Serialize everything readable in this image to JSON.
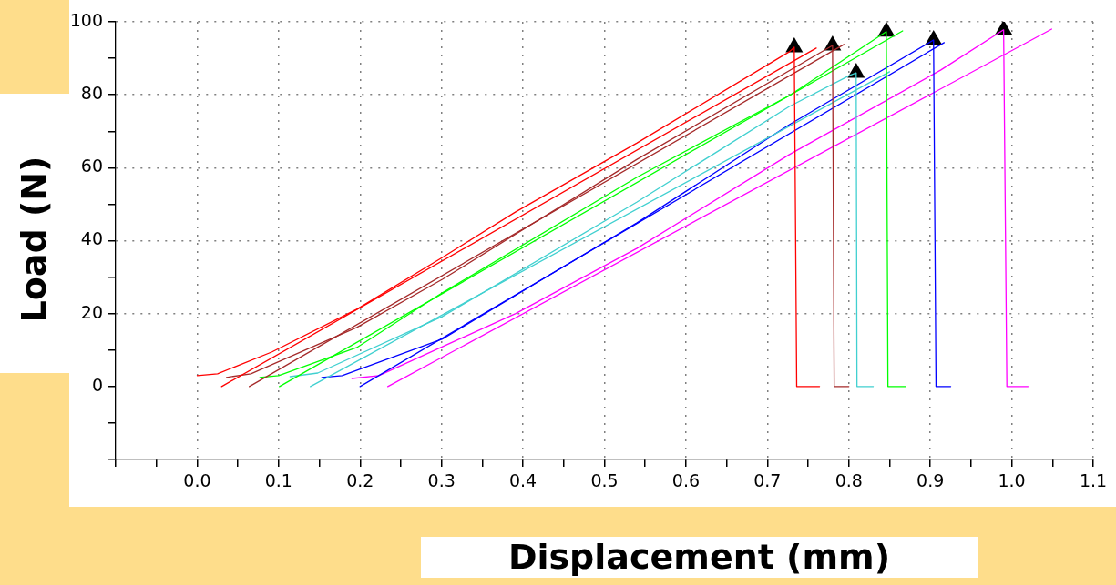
{
  "chart_data": {
    "type": "line",
    "xlabel": "Displacement (mm)",
    "ylabel": "Load (N)",
    "xlim": [
      -0.1,
      1.1
    ],
    "xticks": [
      {
        "value": -0.1,
        "label": null
      },
      {
        "value": -0.05,
        "label": null
      },
      {
        "value": 0,
        "label": "0.0"
      },
      {
        "value": 0.05,
        "label": null
      },
      {
        "value": 0.1,
        "label": "0.1"
      },
      {
        "value": 0.15,
        "label": null
      },
      {
        "value": 0.2,
        "label": "0.2"
      },
      {
        "value": 0.25,
        "label": null
      },
      {
        "value": 0.3,
        "label": "0.3"
      },
      {
        "value": 0.35,
        "label": null
      },
      {
        "value": 0.4,
        "label": "0.4"
      },
      {
        "value": 0.45,
        "label": null
      },
      {
        "value": 0.5,
        "label": "0.5"
      },
      {
        "value": 0.55,
        "label": null
      },
      {
        "value": 0.6,
        "label": "0.6"
      },
      {
        "value": 0.65,
        "label": null
      },
      {
        "value": 0.7,
        "label": "0.7"
      },
      {
        "value": 0.75,
        "label": null
      },
      {
        "value": 0.8,
        "label": "0.8"
      },
      {
        "value": 0.85,
        "label": null
      },
      {
        "value": 0.9,
        "label": "0.9"
      },
      {
        "value": 0.95,
        "label": null
      },
      {
        "value": 1,
        "label": "1.0"
      },
      {
        "value": 1.05,
        "label": null
      },
      {
        "value": 1.1,
        "label": "1.1"
      }
    ],
    "ylim": [
      -20,
      100
    ],
    "yticks": [
      {
        "value": -20,
        "label": null
      },
      {
        "value": -10,
        "label": null
      },
      0,
      {
        "value": 10,
        "label": null
      },
      20,
      {
        "value": 30,
        "label": null
      },
      40,
      {
        "value": 50,
        "label": null
      },
      60,
      {
        "value": 70,
        "label": null
      },
      80,
      {
        "value": 90,
        "label": null
      },
      100
    ],
    "grid": true,
    "legend": false,
    "series": [
      {
        "color": "#ff0000",
        "x": [
          0.0,
          0.025,
          0.092,
          0.196,
          0.301,
          0.391,
          0.54,
          0.727,
          0.733,
          0.736,
          0.764
        ],
        "values": [
          3,
          3.5,
          9.5,
          21.2,
          35.4,
          47.9,
          66.8,
          91.8,
          93,
          0,
          0
        ]
      },
      {
        "color": "#ff0000",
        "x": [
          0.03,
          0.76
        ],
        "values": [
          0,
          92.8
        ]
      },
      {
        "color": "#a52a2a",
        "x": [
          0.036,
          0.066,
          0.196,
          0.301,
          0.54,
          0.78,
          0.782,
          0.8
        ],
        "values": [
          2.5,
          3.5,
          16.2,
          29.4,
          62.3,
          93.5,
          0,
          0
        ]
      },
      {
        "color": "#a52a2a",
        "x": [
          0.064,
          0.794
        ],
        "values": [
          0,
          93.8
        ]
      },
      {
        "color": "#00ff00",
        "x": [
          0.077,
          0.1,
          0.196,
          0.301,
          0.54,
          0.727,
          0.846,
          0.848,
          0.87
        ],
        "values": [
          2.5,
          3,
          10.7,
          25.7,
          57.4,
          79.8,
          97.3,
          0,
          0
        ]
      },
      {
        "color": "#00ff00",
        "x": [
          0.101,
          0.866
        ],
        "values": [
          0,
          97.5
        ]
      },
      {
        "color": "#40d0d0",
        "x": [
          0.114,
          0.148,
          0.301,
          0.54,
          0.727,
          0.801,
          0.809,
          0.81,
          0.83
        ],
        "values": [
          2.7,
          3.7,
          19.2,
          50.6,
          76.8,
          85.3,
          86,
          0,
          0
        ]
      },
      {
        "color": "#40d0d0",
        "x": [
          0.139,
          0.85
        ],
        "values": [
          0,
          86.3
        ]
      },
      {
        "color": "#0000ff",
        "x": [
          0.153,
          0.178,
          0.301,
          0.54,
          0.727,
          0.904,
          0.907,
          0.925
        ],
        "values": [
          2.5,
          3,
          13,
          44.9,
          71.8,
          95,
          0,
          0
        ]
      },
      {
        "color": "#0000ff",
        "x": [
          0.2,
          0.917
        ],
        "values": [
          0,
          94.3
        ]
      },
      {
        "color": "#ff00ff",
        "x": [
          0.19,
          0.223,
          0.391,
          0.54,
          0.727,
          0.913,
          0.99,
          0.994,
          1.02
        ],
        "values": [
          2.2,
          3,
          20,
          37.9,
          63.6,
          86.8,
          97.8,
          0,
          0
        ]
      },
      {
        "color": "#ff00ff",
        "x": [
          0.234,
          1.049
        ],
        "values": [
          0,
          98
        ]
      },
      {
        "type": "scatter",
        "color": "#000000",
        "marker": "triangle",
        "x": [
          0.733,
          0.78,
          0.846,
          0.809,
          0.904,
          0.99
        ],
        "values": [
          93,
          93.5,
          97.3,
          86,
          95,
          97.8
        ]
      }
    ]
  }
}
